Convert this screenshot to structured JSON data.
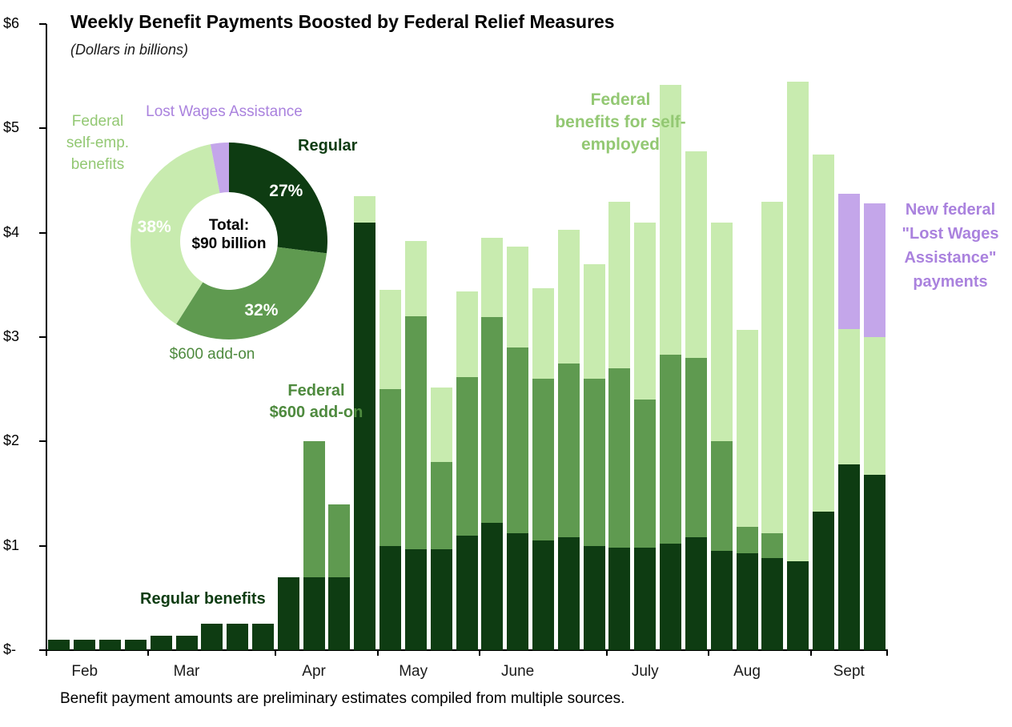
{
  "title": "Weekly Benefit Payments Boosted by Federal Relief Measures",
  "subtitle": "(Dollars in billions)",
  "footnote": "Benefit payment amounts are preliminary estimates compiled from multiple sources.",
  "colors": {
    "regular": "#0e3c12",
    "addon": "#5f9a50",
    "selfemp": "#c8ebaf",
    "lwa": "#c4a6ea",
    "regular_text": "#0e3c12",
    "addon_text": "#4e8a3e",
    "selfemp_text": "#93c873",
    "lwa_text": "#aa82de",
    "axis": "#000000"
  },
  "y_axis": {
    "labels": [
      "$6",
      "$5",
      "$4",
      "$3",
      "$2",
      "$1",
      "$-"
    ],
    "max": 6
  },
  "x_axis": {
    "months": [
      {
        "label": "Feb",
        "center": 1.0
      },
      {
        "label": "Mar",
        "center": 5.0
      },
      {
        "label": "Apr",
        "center": 10.0
      },
      {
        "label": "May",
        "center": 13.9
      },
      {
        "label": "June",
        "center": 18.0
      },
      {
        "label": "July",
        "center": 23.0
      },
      {
        "label": "Aug",
        "center": 27.0
      },
      {
        "label": "Sept",
        "center": 31.0
      }
    ],
    "tick_boundaries": [
      0,
      4,
      9,
      13,
      17,
      22,
      26,
      30,
      33
    ]
  },
  "annotations": {
    "selfemp": "Federal\nbenefits for self-\nemployed",
    "addon": "Federal\n$600 add-on",
    "regular": "Regular benefits",
    "lwa": "New federal\n\"Lost Wages\nAssistance\"\npayments"
  },
  "donut": {
    "center_label": "Total:\n$90 billion",
    "label_lwa": "Lost Wages Assistance",
    "label_selfemp": "Federal\nself-emp.\nbenefits",
    "label_regular": "Regular",
    "label_addon": "$600 add-on"
  },
  "chart_data": [
    {
      "type": "bar",
      "stacked": true,
      "title": "Weekly Benefit Payments Boosted by Federal Relief Measures",
      "ylabel": "Dollars in billions",
      "ylim": [
        0,
        6
      ],
      "x_unit": "week",
      "x_count": 33,
      "grid": false,
      "series": [
        {
          "name": "Regular benefits",
          "color_key": "regular",
          "values": [
            0.1,
            0.1,
            0.1,
            0.1,
            0.14,
            0.14,
            0.25,
            0.25,
            0.25,
            0.7,
            0.7,
            0.7,
            4.1,
            1.0,
            0.97,
            0.97,
            1.1,
            1.22,
            1.12,
            1.05,
            1.08,
            1.0,
            0.98,
            0.98,
            1.02,
            1.08,
            0.95,
            0.93,
            0.88,
            0.85,
            1.33,
            1.78,
            1.68
          ]
        },
        {
          "name": "Federal $600 add-on",
          "color_key": "addon",
          "values": [
            0,
            0,
            0,
            0,
            0,
            0,
            0,
            0,
            0,
            0,
            1.3,
            0.7,
            0,
            1.5,
            2.23,
            0.83,
            1.52,
            1.97,
            1.78,
            1.55,
            1.67,
            1.6,
            1.72,
            1.42,
            1.81,
            1.72,
            1.05,
            0.25,
            0.24,
            0,
            0,
            0,
            0
          ]
        },
        {
          "name": "Federal benefits for self-employed",
          "color_key": "selfemp",
          "values": [
            0,
            0,
            0,
            0,
            0,
            0,
            0,
            0,
            0,
            0,
            0,
            0,
            0.25,
            0.95,
            0.72,
            0.72,
            0.82,
            0.76,
            0.97,
            0.87,
            1.28,
            1.1,
            1.6,
            1.7,
            2.59,
            1.98,
            2.1,
            1.89,
            3.18,
            4.6,
            3.42,
            1.3,
            1.32
          ]
        },
        {
          "name": "Lost Wages Assistance",
          "color_key": "lwa",
          "values": [
            0,
            0,
            0,
            0,
            0,
            0,
            0,
            0,
            0,
            0,
            0,
            0,
            0,
            0,
            0,
            0,
            0,
            0,
            0,
            0,
            0,
            0,
            0,
            0,
            0,
            0,
            0,
            0,
            0,
            0,
            0,
            1.29,
            1.28
          ]
        }
      ]
    },
    {
      "type": "pie",
      "donut": true,
      "total_label": "Total: $90 billion",
      "slices": [
        {
          "label": "Regular",
          "pct": 27,
          "color_key": "regular",
          "show_pct": true
        },
        {
          "label": "$600 add-on",
          "pct": 32,
          "color_key": "addon",
          "show_pct": true
        },
        {
          "label": "Federal self-emp. benefits",
          "pct": 38,
          "color_key": "selfemp",
          "show_pct": true
        },
        {
          "label": "Lost Wages Assistance",
          "pct": 3,
          "color_key": "lwa",
          "show_pct": false
        }
      ]
    }
  ]
}
